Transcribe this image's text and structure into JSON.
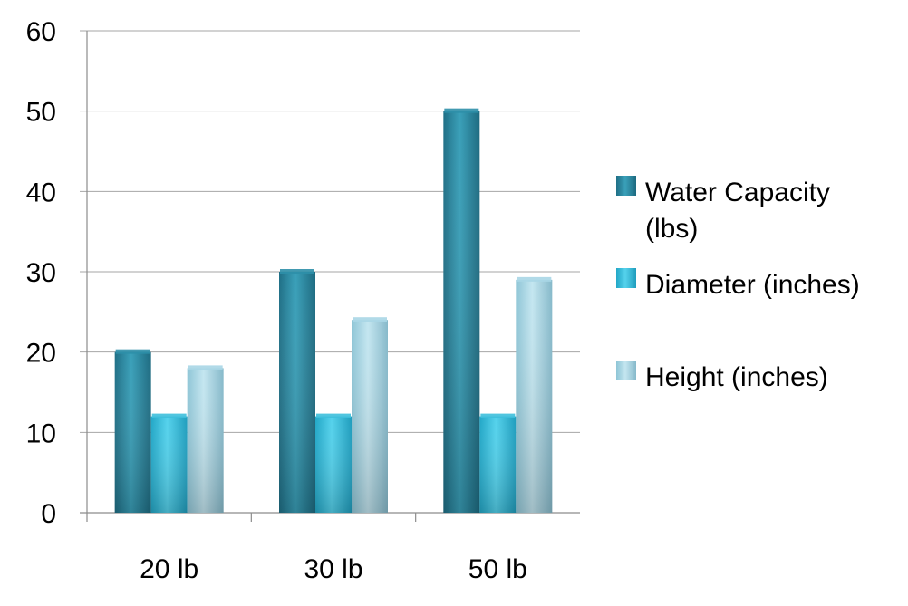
{
  "chart_data": {
    "type": "bar",
    "title": "",
    "xlabel": "",
    "ylabel": "",
    "categories": [
      "20 lb",
      "30 lb",
      "50 lb"
    ],
    "series": [
      {
        "name": "Water Capacity (lbs)",
        "values": [
          20,
          30,
          50
        ],
        "color": "#2e8fa8"
      },
      {
        "name": "Diameter (inches)",
        "values": [
          12,
          12,
          12
        ],
        "color": "#3dbfdc"
      },
      {
        "name": "Height (inches)",
        "values": [
          18,
          24,
          29
        ],
        "color": "#a9d6e5"
      }
    ],
    "ylim": [
      0,
      60
    ],
    "yticks": [
      "0",
      "10",
      "20",
      "30",
      "40",
      "50",
      "60"
    ],
    "grid": true,
    "legend_position": "right",
    "legend_lines": [
      [
        "Water Capacity",
        "(lbs)"
      ],
      [
        "Diameter (inches)"
      ],
      [
        "Height (inches)"
      ]
    ]
  }
}
